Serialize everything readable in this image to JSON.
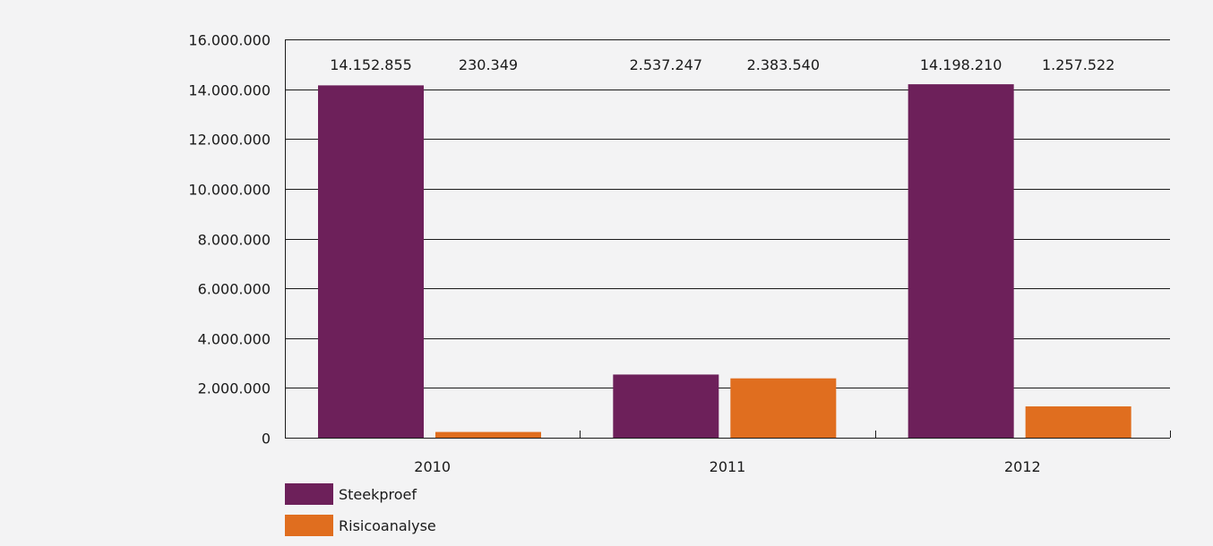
{
  "chart_data": {
    "type": "bar",
    "categories": [
      "2010",
      "2011",
      "2012"
    ],
    "series": [
      {
        "name": "Steekproef",
        "color": "#6d205a",
        "values": [
          14152855,
          2537247,
          14198210
        ],
        "labels": [
          "14.152.855",
          "2.537.247",
          "14.198.210"
        ]
      },
      {
        "name": "Risicoanalyse",
        "color": "#e06e1f",
        "values": [
          230349,
          2383540,
          1257522
        ],
        "labels": [
          "230.349",
          "2.383.540",
          "1.257.522"
        ]
      }
    ],
    "ylim": [
      0,
      16000000
    ],
    "yticks": [
      0,
      2000000,
      4000000,
      6000000,
      8000000,
      10000000,
      12000000,
      14000000,
      16000000
    ],
    "ytick_labels": [
      "0",
      "2.000.000",
      "4.000.000",
      "6.000.000",
      "8.000.000",
      "10.000.000",
      "12.000.000",
      "14.000.000",
      "16.000.000"
    ],
    "grid": true,
    "legend_position": "bottom-left"
  }
}
